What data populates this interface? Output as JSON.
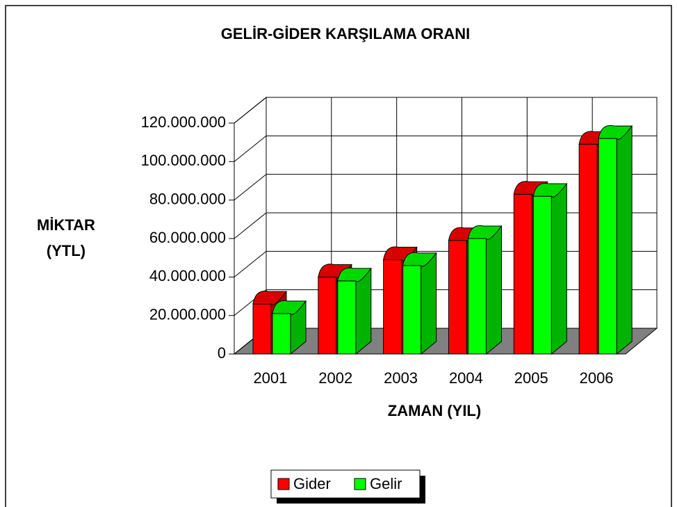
{
  "chart_data": {
    "type": "bar3d",
    "title": "GELİR-GİDER KARŞILAMA ORANI",
    "ylabel": [
      "MİKTAR",
      "(YTL)"
    ],
    "xlabel": "ZAMAN (YIL)",
    "categories": [
      "2001",
      "2002",
      "2003",
      "2004",
      "2005",
      "2006"
    ],
    "series": [
      {
        "name": "Gider",
        "color": "#ff0000",
        "values": [
          26000000,
          40000000,
          49000000,
          59000000,
          83000000,
          109000000
        ]
      },
      {
        "name": "Gelir",
        "color": "#00ff00",
        "values": [
          21000000,
          38000000,
          46000000,
          60000000,
          82000000,
          112000000
        ]
      }
    ],
    "ylim": [
      0,
      120000000
    ],
    "yticks": [
      0,
      {
        "value": 20000000,
        "label": "20.000.000"
      },
      {
        "value": 40000000,
        "label": "40.000.000"
      },
      {
        "value": 60000000,
        "label": "60.000.000"
      },
      {
        "value": 80000000,
        "label": "80.000.000"
      },
      {
        "value": 100000000,
        "label": "100.000.000"
      },
      {
        "value": 120000000,
        "label": "120.000.000"
      }
    ],
    "grid": true,
    "legend": "bottom"
  }
}
